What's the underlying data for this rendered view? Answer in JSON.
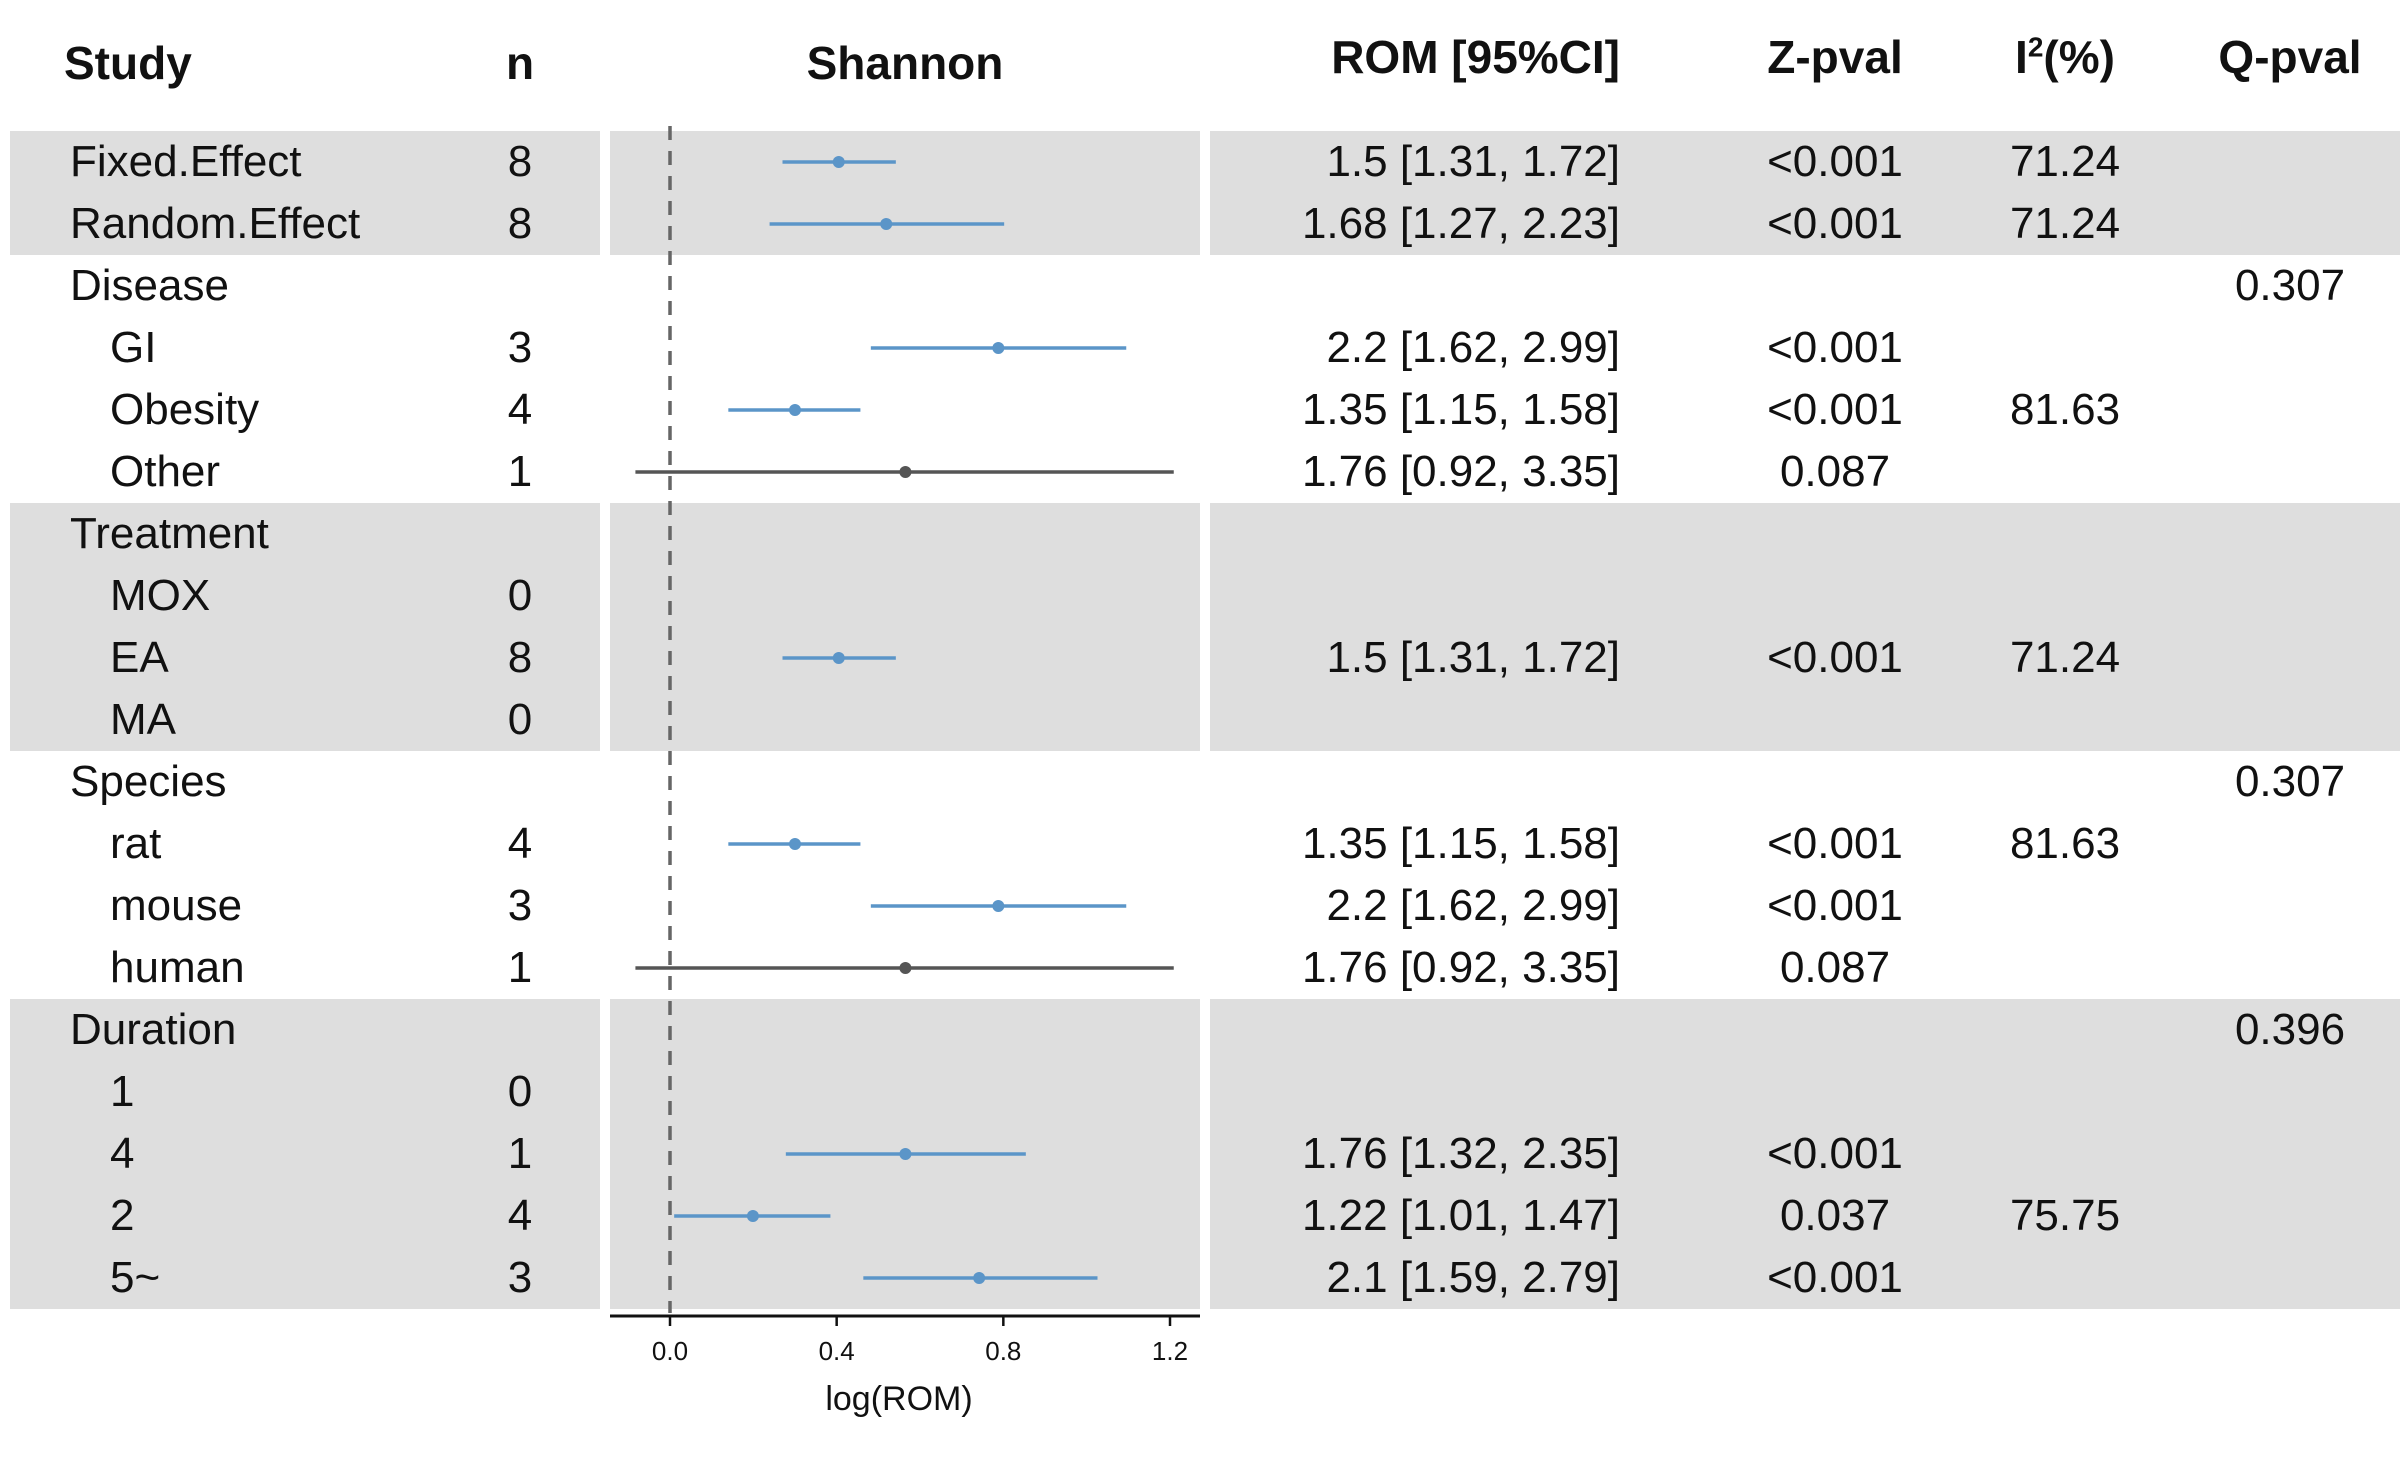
{
  "headers": {
    "study": "Study",
    "n": "n",
    "plot": "Shannon",
    "rom": "ROM [95%CI]",
    "z": "Z-pval",
    "i2_main": "I",
    "i2_sup": "2",
    "i2_tail": "(%)",
    "q": "Q-pval"
  },
  "colors": {
    "significant": "#5b95c8",
    "nonsignificant": "#555555",
    "band": "#dedede",
    "refline": "#666666"
  },
  "chart_data": {
    "type": "forest",
    "xlabel": "log(ROM)",
    "xlim": [
      -0.1,
      1.27
    ],
    "xticks": [
      0.0,
      0.4,
      0.8,
      1.2
    ],
    "xtick_labels": [
      "0.0",
      "0.4",
      "0.8",
      "1.2"
    ],
    "reference_line": 0.0,
    "rows": [
      {
        "label": "Fixed.Effect",
        "indent": false,
        "n": "8",
        "est": 0.405,
        "lo": 0.27,
        "hi": 0.542,
        "rom": "1.5 [1.31, 1.72]",
        "z": "<0.001",
        "i2": "71.24",
        "q": "",
        "sig": true,
        "band": true
      },
      {
        "label": "Random.Effect",
        "indent": false,
        "n": "8",
        "est": 0.519,
        "lo": 0.239,
        "hi": 0.802,
        "rom": "1.68 [1.27, 2.23]",
        "z": "<0.001",
        "i2": "71.24",
        "q": "",
        "sig": true,
        "band": true
      },
      {
        "label": "Disease",
        "indent": false,
        "n": "",
        "est": null,
        "lo": null,
        "hi": null,
        "rom": "",
        "z": "",
        "i2": "",
        "q": "0.307",
        "sig": true,
        "band": false
      },
      {
        "label": "GI",
        "indent": true,
        "n": "3",
        "est": 0.788,
        "lo": 0.482,
        "hi": 1.095,
        "rom": "2.2 [1.62, 2.99]",
        "z": "<0.001",
        "i2": "",
        "q": "",
        "sig": true,
        "band": false
      },
      {
        "label": "Obesity",
        "indent": true,
        "n": "4",
        "est": 0.3,
        "lo": 0.14,
        "hi": 0.457,
        "rom": "1.35 [1.15, 1.58]",
        "z": "<0.001",
        "i2": "81.63",
        "q": "",
        "sig": true,
        "band": false
      },
      {
        "label": "Other",
        "indent": true,
        "n": "1",
        "est": 0.565,
        "lo": -0.083,
        "hi": 1.209,
        "rom": "1.76 [0.92, 3.35]",
        "z": "0.087",
        "i2": "",
        "q": "",
        "sig": false,
        "band": false
      },
      {
        "label": "Treatment",
        "indent": false,
        "n": "",
        "est": null,
        "lo": null,
        "hi": null,
        "rom": "",
        "z": "",
        "i2": "",
        "q": "",
        "sig": true,
        "band": true
      },
      {
        "label": "MOX",
        "indent": true,
        "n": "0",
        "est": null,
        "lo": null,
        "hi": null,
        "rom": "",
        "z": "",
        "i2": "",
        "q": "",
        "sig": true,
        "band": true
      },
      {
        "label": "EA",
        "indent": true,
        "n": "8",
        "est": 0.405,
        "lo": 0.27,
        "hi": 0.542,
        "rom": "1.5 [1.31, 1.72]",
        "z": "<0.001",
        "i2": "71.24",
        "q": "",
        "sig": true,
        "band": true
      },
      {
        "label": "MA",
        "indent": true,
        "n": "0",
        "est": null,
        "lo": null,
        "hi": null,
        "rom": "",
        "z": "",
        "i2": "",
        "q": "",
        "sig": true,
        "band": true
      },
      {
        "label": "Species",
        "indent": false,
        "n": "",
        "est": null,
        "lo": null,
        "hi": null,
        "rom": "",
        "z": "",
        "i2": "",
        "q": "0.307",
        "sig": true,
        "band": false
      },
      {
        "label": "rat",
        "indent": true,
        "n": "4",
        "est": 0.3,
        "lo": 0.14,
        "hi": 0.457,
        "rom": "1.35 [1.15, 1.58]",
        "z": "<0.001",
        "i2": "81.63",
        "q": "",
        "sig": true,
        "band": false
      },
      {
        "label": "mouse",
        "indent": true,
        "n": "3",
        "est": 0.788,
        "lo": 0.482,
        "hi": 1.095,
        "rom": "2.2 [1.62, 2.99]",
        "z": "<0.001",
        "i2": "",
        "q": "",
        "sig": true,
        "band": false
      },
      {
        "label": "human",
        "indent": true,
        "n": "1",
        "est": 0.565,
        "lo": -0.083,
        "hi": 1.209,
        "rom": "1.76 [0.92, 3.35]",
        "z": "0.087",
        "i2": "",
        "q": "",
        "sig": false,
        "band": false
      },
      {
        "label": "Duration",
        "indent": false,
        "n": "",
        "est": null,
        "lo": null,
        "hi": null,
        "rom": "",
        "z": "",
        "i2": "",
        "q": "0.396",
        "sig": true,
        "band": true
      },
      {
        "label": "1",
        "indent": true,
        "n": "0",
        "est": null,
        "lo": null,
        "hi": null,
        "rom": "",
        "z": "",
        "i2": "",
        "q": "",
        "sig": true,
        "band": true
      },
      {
        "label": "4",
        "indent": true,
        "n": "1",
        "est": 0.565,
        "lo": 0.278,
        "hi": 0.854,
        "rom": "1.76 [1.32, 2.35]",
        "z": "<0.001",
        "i2": "",
        "q": "",
        "sig": true,
        "band": true
      },
      {
        "label": "2",
        "indent": true,
        "n": "4",
        "est": 0.199,
        "lo": 0.01,
        "hi": 0.385,
        "rom": "1.22 [1.01, 1.47]",
        "z": "0.037",
        "i2": "75.75",
        "q": "",
        "sig": true,
        "band": true
      },
      {
        "label": "5~",
        "indent": true,
        "n": "3",
        "est": 0.742,
        "lo": 0.464,
        "hi": 1.026,
        "rom": "2.1 [1.59, 2.79]",
        "z": "<0.001",
        "i2": "",
        "q": "",
        "sig": true,
        "band": true
      }
    ]
  }
}
